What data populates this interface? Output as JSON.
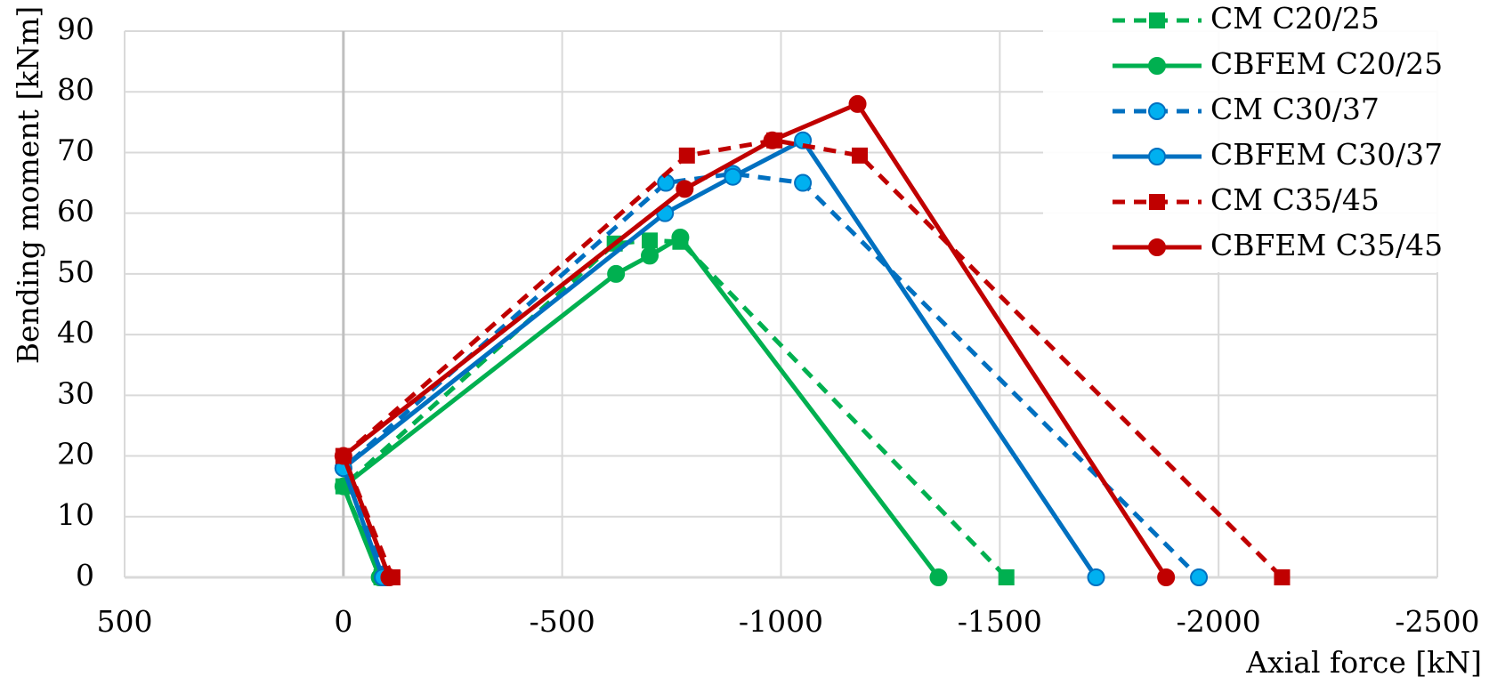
{
  "chart_data": {
    "type": "line",
    "title": "",
    "xlabel": "Axial force [kN]",
    "ylabel": "Bending moment [kNm]",
    "xlim": [
      500,
      -2500
    ],
    "ylim": [
      0,
      90
    ],
    "x_reversed": true,
    "xticks": [
      500,
      0,
      -500,
      -1000,
      -1500,
      -2000,
      -2500
    ],
    "yticks": [
      0,
      10,
      20,
      30,
      40,
      50,
      60,
      70,
      80,
      90
    ],
    "xtick_labels": [
      "500",
      "0",
      "-500",
      "-1000",
      "-1500",
      "-2000",
      "-2500"
    ],
    "ytick_labels": [
      "0",
      "10",
      "20",
      "30",
      "40",
      "50",
      "60",
      "70",
      "80",
      "90"
    ],
    "grid": true,
    "legend_position": "top-right",
    "series": [
      {
        "name": "CM C20/25",
        "color": "#00b050",
        "dashed": true,
        "marker": "square",
        "points": [
          [
            -87,
            0
          ],
          [
            0,
            15
          ],
          [
            -620,
            55
          ],
          [
            -700,
            55.5
          ],
          [
            -770,
            55.3
          ],
          [
            -1515,
            0
          ]
        ]
      },
      {
        "name": "CBFEM C20/25",
        "color": "#00b050",
        "dashed": false,
        "marker": "circle",
        "points": [
          [
            -83,
            0
          ],
          [
            0,
            15
          ],
          [
            -623,
            50
          ],
          [
            -700,
            53
          ],
          [
            -770,
            56
          ],
          [
            -1360,
            0
          ]
        ]
      },
      {
        "name": "CM C30/37",
        "color": "#0070c0",
        "dashed": true,
        "marker": "circle",
        "points": [
          [
            -97,
            0
          ],
          [
            0,
            18
          ],
          [
            -737,
            65
          ],
          [
            -890,
            66.5
          ],
          [
            -1050,
            65
          ],
          [
            -1955,
            0
          ]
        ]
      },
      {
        "name": "CBFEM C30/37",
        "color": "#0070c0",
        "dashed": false,
        "marker": "circle",
        "points": [
          [
            -90,
            0
          ],
          [
            0,
            18
          ],
          [
            -735,
            60
          ],
          [
            -890,
            66
          ],
          [
            -1050,
            72
          ],
          [
            -1720,
            0
          ]
        ]
      },
      {
        "name": "CM C35/45",
        "color": "#c00000",
        "dashed": true,
        "marker": "square",
        "points": [
          [
            -112,
            0
          ],
          [
            0,
            20
          ],
          [
            -785,
            69.5
          ],
          [
            -985,
            72
          ],
          [
            -1180,
            69.5
          ],
          [
            -2145,
            0
          ]
        ]
      },
      {
        "name": "CBFEM C35/45",
        "color": "#c00000",
        "dashed": false,
        "marker": "circle",
        "points": [
          [
            -105,
            0
          ],
          [
            0,
            20
          ],
          [
            -780,
            64
          ],
          [
            -980,
            72
          ],
          [
            -1175,
            78
          ],
          [
            -1880,
            0
          ]
        ]
      }
    ]
  }
}
